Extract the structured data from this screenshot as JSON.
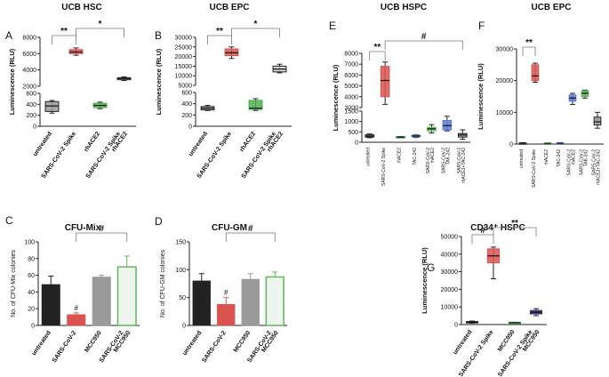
{
  "chart_data": [
    {
      "id": "A",
      "type": "box",
      "title": "UCB HSC",
      "ylabel": "Luminescence (RLU)",
      "ylim": [
        0,
        8000
      ],
      "yticks": [
        0,
        200,
        400,
        600,
        2000,
        4000,
        6000,
        8000
      ],
      "yscale_break": {
        "lower": [
          0,
          600
        ],
        "upper": [
          2000,
          8000
        ]
      },
      "categories": [
        "untreated",
        "SARS-CoV-2 Spike",
        "rhACE2",
        "SARS-CoV-2 Spike\nrhACE2"
      ],
      "series": [
        {
          "name": "untreated",
          "color": "#9a9a9a",
          "min": 240,
          "q1": 270,
          "median": 370,
          "q3": 450,
          "max": 470
        },
        {
          "name": "SARS-CoV-2 Spike",
          "color": "#d9534f",
          "min": 5800,
          "q1": 6000,
          "median": 6200,
          "q3": 6500,
          "max": 6700
        },
        {
          "name": "rhACE2",
          "color": "#4caf50",
          "min": 320,
          "q1": 340,
          "median": 380,
          "q3": 420,
          "max": 440
        },
        {
          "name": "SARS-CoV-2 Spike rhACE2",
          "color": "#cccccc",
          "min": 2700,
          "q1": 2800,
          "median": 2950,
          "q3": 3050,
          "max": 3150
        }
      ],
      "annotations": [
        {
          "text": "**",
          "between": [
            0,
            1
          ]
        },
        {
          "text": "*",
          "between": [
            1,
            3
          ]
        }
      ]
    },
    {
      "id": "B",
      "type": "box",
      "title": "UCB EPC",
      "ylabel": "Luminescence (RLU)",
      "ylim": [
        0,
        30000
      ],
      "yticks": [
        0,
        200,
        400,
        600,
        5000,
        10000,
        15000,
        20000,
        25000,
        30000
      ],
      "yscale_break": {
        "lower": [
          0,
          600
        ],
        "upper": [
          2000,
          30000
        ]
      },
      "categories": [
        "untreated",
        "SARS-CoV-2 Spike",
        "rhACE2",
        "SARS-CoV-2 Spike\nrhACE2"
      ],
      "series": [
        {
          "name": "untreated",
          "color": "#9a9a9a",
          "min": 280,
          "q1": 290,
          "median": 320,
          "q3": 350,
          "max": 370
        },
        {
          "name": "SARS-CoV-2 Spike",
          "color": "#d9534f",
          "min": 19000,
          "q1": 20500,
          "median": 22000,
          "q3": 24000,
          "max": 25000
        },
        {
          "name": "rhACE2",
          "color": "#4caf50",
          "min": 280,
          "q1": 300,
          "median": 320,
          "q3": 460,
          "max": 490
        },
        {
          "name": "SARS-CoV-2 Spike rhACE2",
          "color": "#cccccc",
          "min": 11500,
          "q1": 12000,
          "median": 13500,
          "q3": 15000,
          "max": 16000
        }
      ],
      "annotations": [
        {
          "text": "**",
          "between": [
            0,
            1
          ]
        },
        {
          "text": "*",
          "between": [
            1,
            3
          ]
        }
      ]
    },
    {
      "id": "C",
      "type": "bar",
      "title": "CFU-Mix",
      "ylabel": "No. of CFU-Mix colonies",
      "ylim": [
        0,
        100
      ],
      "yticks": [
        0,
        20,
        40,
        60,
        80,
        100
      ],
      "categories": [
        "untreated",
        "SARS-CoV-2",
        "MCC950",
        "SARS-CoV-2\nMCC950"
      ],
      "series": [
        {
          "name": "untreated",
          "color": "#222222",
          "value": 49,
          "error": 10
        },
        {
          "name": "SARS-CoV-2",
          "color": "#d9534f",
          "value": 13,
          "error": 2
        },
        {
          "name": "MCC950",
          "color": "#9a9a9a",
          "value": 58,
          "error": 2
        },
        {
          "name": "SARS-CoV-2 MCC950",
          "color": "#5cb85c",
          "value": 70,
          "error": 13
        }
      ],
      "annotations": [
        {
          "text": "#",
          "at": 1
        },
        {
          "text": "#",
          "between": [
            1,
            3
          ]
        }
      ]
    },
    {
      "id": "D",
      "type": "bar",
      "title": "CFU-GM",
      "ylabel": "No. of CFU-GM colonies",
      "ylim": [
        0,
        150
      ],
      "yticks": [
        0,
        50,
        100,
        150
      ],
      "categories": [
        "untreated",
        "SARS-CoV-2",
        "MCC950",
        "SARS-CoV-2\nMCC950"
      ],
      "series": [
        {
          "name": "untreated",
          "color": "#222222",
          "value": 80,
          "error": 13
        },
        {
          "name": "SARS-CoV-2",
          "color": "#d9534f",
          "value": 38,
          "error": 12
        },
        {
          "name": "MCC950",
          "color": "#9a9a9a",
          "value": 83,
          "error": 10
        },
        {
          "name": "SARS-CoV-2 MCC950",
          "color": "#5cb85c",
          "value": 87,
          "error": 9
        }
      ],
      "annotations": [
        {
          "text": "#",
          "at": 1
        },
        {
          "text": "#",
          "between": [
            1,
            3
          ]
        }
      ]
    },
    {
      "id": "E",
      "type": "box",
      "title": "UCB HSPC",
      "ylabel": "Luminescence (RLU)",
      "ylim": [
        0,
        8000
      ],
      "yticks": [
        0,
        500,
        1000,
        1500,
        3000,
        4000,
        5000,
        6000,
        7000,
        8000
      ],
      "yscale_break": {
        "lower": [
          0,
          1500
        ],
        "upper": [
          3000,
          8000
        ]
      },
      "categories": [
        "untreated",
        "SARS-CoV-2 Spike",
        "rhACE2",
        "TAC-242",
        "SARS-CoV-2\nrhACE2",
        "SARS-CoV-2\nTAK-242",
        "SARS-CoV-2\nrhACE2+TAC-242"
      ],
      "series": [
        {
          "name": "untreated",
          "color": "#9a9a9a",
          "min": 220,
          "q1": 250,
          "median": 300,
          "q3": 360,
          "max": 400
        },
        {
          "name": "SARS-CoV-2 Spike",
          "color": "#d9534f",
          "min": 3300,
          "q1": 4000,
          "median": 5500,
          "q3": 6800,
          "max": 7200
        },
        {
          "name": "rhACE2",
          "color": "#4caf50",
          "min": 220,
          "q1": 230,
          "median": 250,
          "q3": 270,
          "max": 280
        },
        {
          "name": "TAC-242",
          "color": "#5b7bd5",
          "min": 230,
          "q1": 260,
          "median": 300,
          "q3": 340,
          "max": 360
        },
        {
          "name": "SARS-CoV-2 rhACE2",
          "color": "#5cb85c",
          "min": 450,
          "q1": 550,
          "median": 650,
          "q3": 720,
          "max": 850
        },
        {
          "name": "SARS-CoV-2 TAK-242",
          "color": "#5b7bd5",
          "min": 550,
          "q1": 600,
          "median": 800,
          "q3": 1050,
          "max": 1250
        },
        {
          "name": "SARS-CoV-2 rhACE2+TAC-242",
          "color": "#9a9a9a",
          "min": 150,
          "q1": 250,
          "median": 350,
          "q3": 420,
          "max": 600
        }
      ],
      "annotations": [
        {
          "text": "**",
          "between": [
            0,
            1
          ]
        },
        {
          "text": "#",
          "between": [
            1,
            6
          ]
        }
      ]
    },
    {
      "id": "F",
      "type": "box",
      "title": "UCB EPC",
      "ylabel": "Luminescence (RLU)",
      "ylim": [
        0,
        30000
      ],
      "yticks": [
        0,
        10000,
        20000,
        30000
      ],
      "categories": [
        "untreated",
        "SARS-CoV-2 Spike",
        "rhACE2",
        "TAC-242",
        "SARS-CoV-2\nrhACE2",
        "SARS-CoV-2\nTAK-242",
        "SARS-CoV-2\nrhACE2+TAC-242"
      ],
      "series": [
        {
          "name": "untreated",
          "color": "#9a9a9a",
          "min": 200,
          "q1": 250,
          "median": 300,
          "q3": 350,
          "max": 400
        },
        {
          "name": "SARS-CoV-2 Spike",
          "color": "#d9534f",
          "min": 19500,
          "q1": 20000,
          "median": 21500,
          "q3": 25000,
          "max": 25500
        },
        {
          "name": "rhACE2",
          "color": "#4caf50",
          "min": 200,
          "q1": 230,
          "median": 250,
          "q3": 280,
          "max": 300
        },
        {
          "name": "TAC-242",
          "color": "#5b7bd5",
          "min": 200,
          "q1": 240,
          "median": 280,
          "q3": 320,
          "max": 350
        },
        {
          "name": "SARS-CoV-2 rhACE2",
          "color": "#5b7bd5",
          "min": 12500,
          "q1": 13500,
          "median": 14500,
          "q3": 15500,
          "max": 16000
        },
        {
          "name": "SARS-CoV-2 TAK-242",
          "color": "#5cb85c",
          "min": 14500,
          "q1": 15000,
          "median": 16000,
          "q3": 16800,
          "max": 17000
        },
        {
          "name": "SARS-CoV-2 rhACE2+TAC-242",
          "color": "#9a9a9a",
          "min": 5000,
          "q1": 6000,
          "median": 7000,
          "q3": 8500,
          "max": 10000
        }
      ],
      "annotations": [
        {
          "text": "**",
          "between": [
            0,
            1
          ]
        }
      ]
    },
    {
      "id": "G",
      "type": "box",
      "title": "CD34⁺ HSPC",
      "ylabel": "Luminescence (RLU)",
      "ylim": [
        0,
        50000
      ],
      "yticks": [
        0,
        10000,
        20000,
        30000,
        40000,
        50000
      ],
      "categories": [
        "untreated",
        "SARS-CoV-2 Spike",
        "MCC950",
        "SARS-CoV-2 Spike\nMCC950"
      ],
      "series": [
        {
          "name": "untreated",
          "color": "#9a9a9a",
          "min": 800,
          "q1": 1000,
          "median": 1300,
          "q3": 1700,
          "max": 2000
        },
        {
          "name": "SARS-CoV-2 Spike",
          "color": "#d9534f",
          "min": 26000,
          "q1": 35000,
          "median": 39000,
          "q3": 43000,
          "max": 44000
        },
        {
          "name": "MCC950",
          "color": "#4caf50",
          "min": 900,
          "q1": 1000,
          "median": 1100,
          "q3": 1200,
          "max": 1300
        },
        {
          "name": "SARS-CoV-2 Spike MCC950",
          "color": "#4a3a7a",
          "min": 5000,
          "q1": 6000,
          "median": 7000,
          "q3": 8000,
          "max": 9000
        }
      ],
      "annotations": [
        {
          "text": "#",
          "between": [
            0,
            1
          ]
        },
        {
          "text": "**",
          "between": [
            1,
            3
          ]
        }
      ]
    }
  ]
}
